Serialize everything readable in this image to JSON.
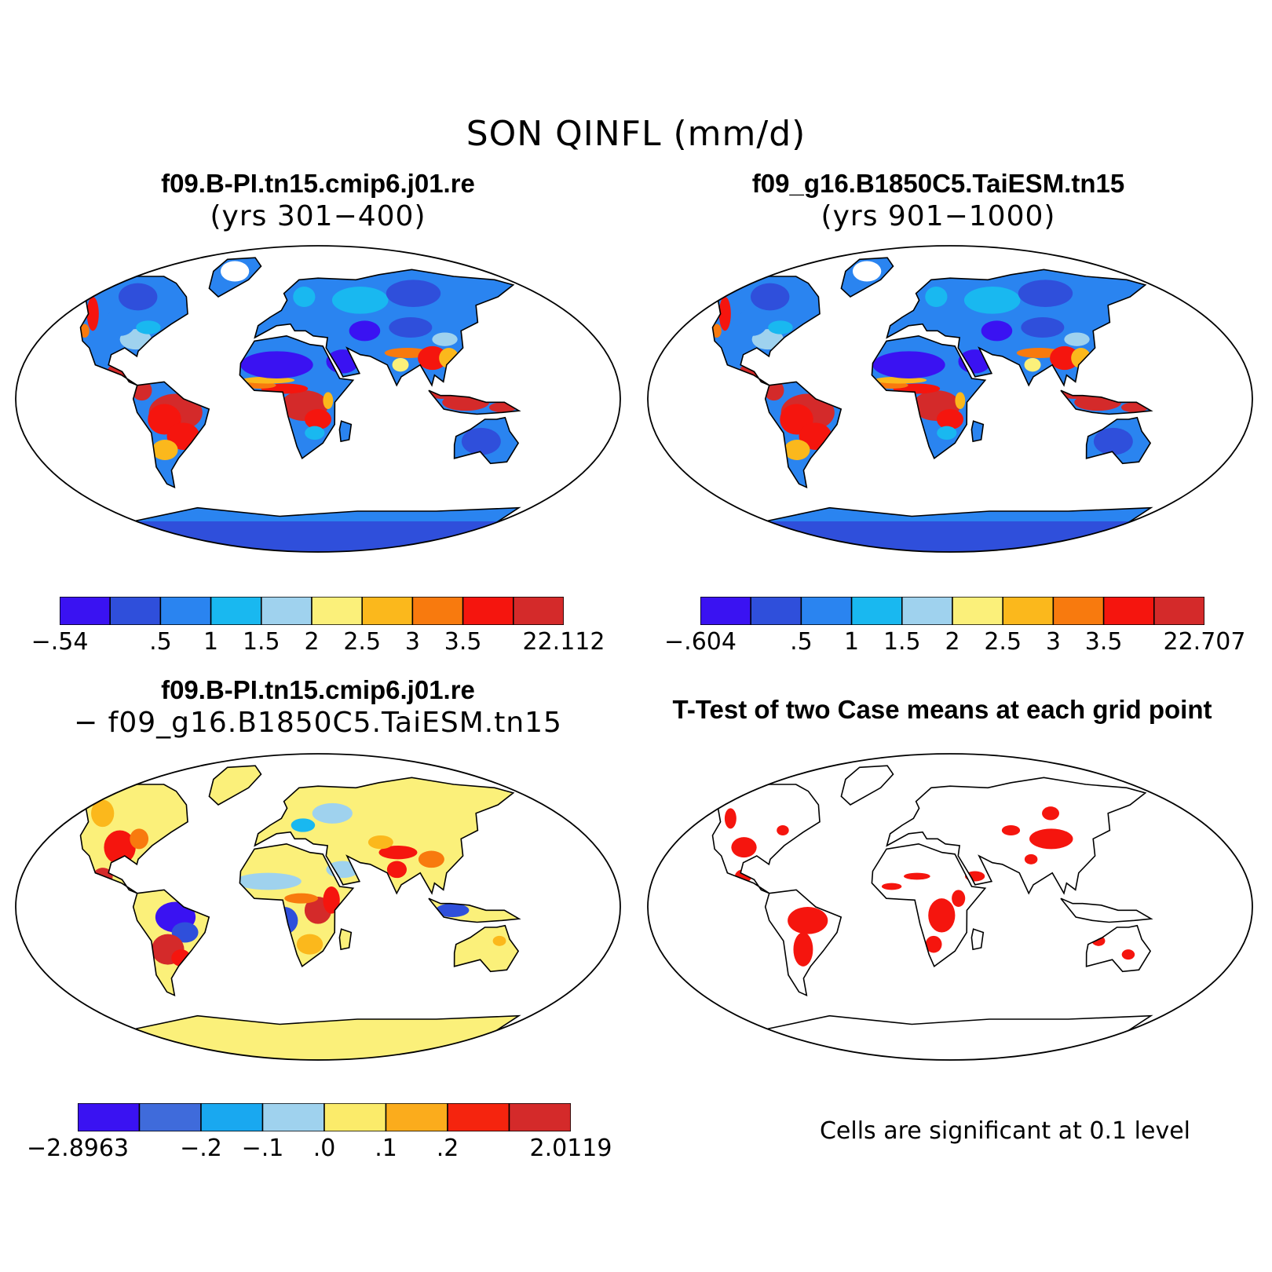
{
  "title": "SON QINFL (mm/d)",
  "panels": {
    "top_left": {
      "title": "f09.B-PI.tn15.cmip6.j01.re",
      "subtitle": "(yrs 301−400)"
    },
    "top_right": {
      "title": "f09_g16.B1850C5.TaiESM.tn15",
      "subtitle": "(yrs 901−1000)"
    },
    "bottom_left": {
      "title": "f09.B-PI.tn15.cmip6.j01.re",
      "subtitle": "− f09_g16.B1850C5.TaiESM.tn15"
    },
    "bottom_right": {
      "title": "T-Test of two Case means at each grid point",
      "note": "Cells are significant at 0.1 level"
    }
  },
  "colorbars": {
    "top_left": {
      "colors": [
        "#3a12f2",
        "#2f4fdb",
        "#2a84f0",
        "#19b8f0",
        "#9fd2ee",
        "#fbf07a",
        "#fbb81c",
        "#f87a0e",
        "#f5150e",
        "#d42a2a"
      ],
      "labels": [
        "−.54",
        ".5",
        "1",
        "1.5",
        "2",
        "2.5",
        "3",
        "3.5",
        "22.112"
      ]
    },
    "top_right": {
      "colors": [
        "#3a12f2",
        "#2f4fdb",
        "#2a84f0",
        "#19b8f0",
        "#9fd2ee",
        "#fbf07a",
        "#fbb81c",
        "#f87a0e",
        "#f5150e",
        "#d42a2a"
      ],
      "labels": [
        "−.604",
        ".5",
        "1",
        "1.5",
        "2",
        "2.5",
        "3",
        "3.5",
        "22.707"
      ]
    },
    "bottom_left": {
      "colors": [
        "#3a12f2",
        "#3f6bdb",
        "#19a8f0",
        "#9fd2ee",
        "#fbeb6a",
        "#fbac1c",
        "#f5240e",
        "#d42a2a"
      ],
      "labels": [
        "−2.8963",
        "−.2",
        "−.1",
        ".0",
        ".1",
        ".2",
        "2.0119"
      ]
    }
  },
  "map_colors": {
    "ocean": "#ffffff",
    "coast": "#000000",
    "low": "#2f4fdb",
    "verylow": "#3a12f2",
    "mid": "#2a84f0",
    "light": "#19b8f0",
    "pale": "#9fd2ee",
    "yellow": "#fbf07a",
    "orange": "#fbb81c",
    "dark_orange": "#f87a0e",
    "red": "#f5150e",
    "dark_red": "#d42a2a",
    "sig": "#f5150e"
  }
}
